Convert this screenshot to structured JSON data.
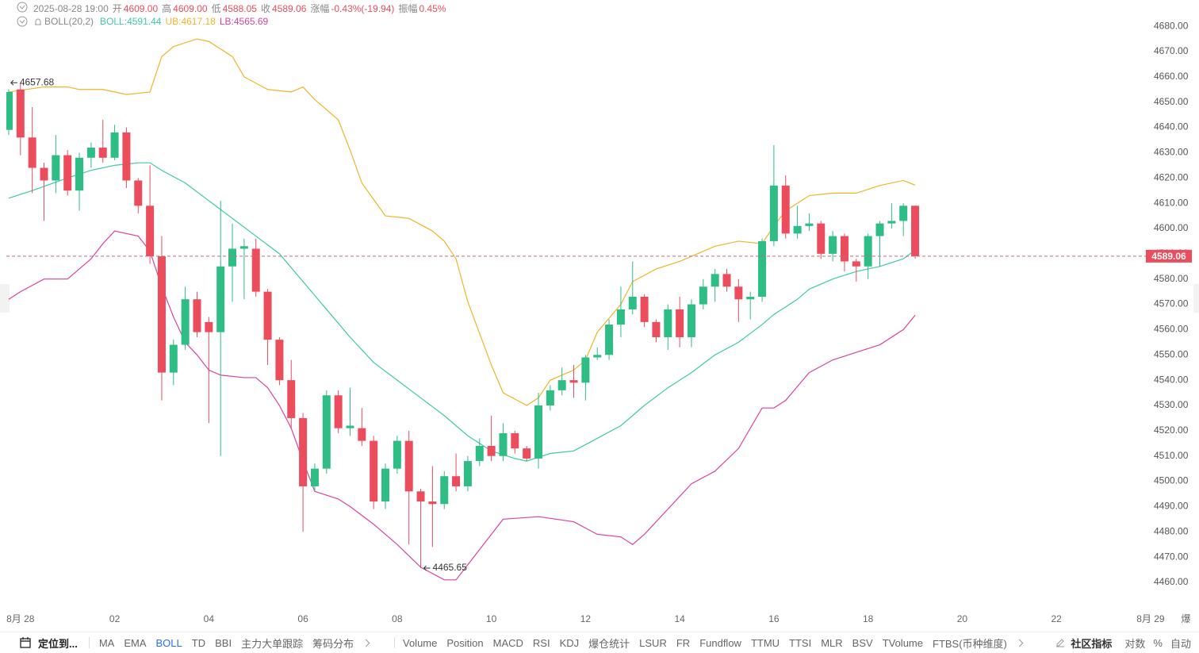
{
  "header": {
    "datetime": "2025-08-28 19:00",
    "fields": [
      {
        "label": "开",
        "value": "4609.00"
      },
      {
        "label": "高",
        "value": "4609.00"
      },
      {
        "label": "低",
        "value": "4588.05"
      },
      {
        "label": "收",
        "value": "4589.06"
      },
      {
        "label": "涨幅",
        "value": "-0.43%(-19.94)"
      },
      {
        "label": "振幅",
        "value": "0.45%"
      }
    ]
  },
  "legend": {
    "title": "BOLL(20,2)",
    "items": [
      "BOLL:4591.44",
      "UB:4617.18",
      "LB:4565.69"
    ]
  },
  "chart_data": {
    "type": "candlestick",
    "up_color": "#2ebd85",
    "down_color": "#eb4d5c",
    "x": [
      -0.25,
      0,
      0.25,
      0.5,
      0.75,
      1,
      1.25,
      1.5,
      1.75,
      2,
      2.25,
      2.5,
      2.75,
      3,
      3.25,
      3.5,
      3.75,
      4,
      4.25,
      4.5,
      4.75,
      5,
      5.25,
      5.5,
      5.75,
      6,
      6.25,
      6.5,
      6.75,
      7,
      7.25,
      7.5,
      7.75,
      8,
      8.25,
      8.5,
      8.75,
      9,
      9.25,
      9.5,
      9.75,
      10,
      10.25,
      10.5,
      10.75,
      11,
      11.25,
      11.5,
      11.75,
      12,
      12.25,
      12.5,
      12.75,
      13,
      13.25,
      13.5,
      13.75,
      14,
      14.25,
      14.5,
      14.75,
      15,
      15.25,
      15.5,
      15.75,
      16,
      16.25,
      16.5,
      16.75,
      17,
      17.25,
      17.5,
      17.75,
      18,
      18.25,
      18.5,
      18.75,
      19
    ],
    "open": [
      4639,
      4655,
      4636,
      4624,
      4619,
      4629,
      4615,
      4628,
      4632,
      4628,
      4638,
      4619,
      4609,
      4589,
      4543,
      4554,
      4572,
      4563,
      4559,
      4585,
      4592,
      4592,
      4575,
      4556,
      4540,
      4525,
      4498,
      4505,
      4534,
      4521,
      4521,
      4516,
      4492,
      4505,
      4516,
      4496,
      4492,
      4491,
      4502,
      4498,
      4508,
      4514,
      4510,
      4519,
      4513,
      4509,
      4530,
      4536,
      4540,
      4539,
      4549,
      4550,
      4562,
      4568,
      4573,
      4563,
      4557,
      4568,
      4557,
      4570,
      4577,
      4582,
      4577,
      4572,
      4573,
      4595,
      4617,
      4598,
      4601,
      4602,
      4590,
      4597,
      4587,
      4585,
      4597,
      4602,
      4603,
      4609
    ],
    "high": [
      4655,
      4657.68,
      4648,
      4626,
      4637,
      4631,
      4630,
      4634,
      4643,
      4641,
      4640,
      4620,
      4625,
      4597,
      4556,
      4577,
      4575,
      4565,
      4611,
      4602,
      4596,
      4596,
      4576,
      4557,
      4548,
      4527,
      4507,
      4536,
      4536,
      4537,
      4529,
      4518,
      4507,
      4518,
      4520,
      4497,
      4506,
      4504,
      4511,
      4510,
      4517,
      4526,
      4523,
      4520,
      4514,
      4535,
      4538,
      4545,
      4546,
      4550,
      4553,
      4564,
      4577,
      4587,
      4574,
      4564,
      4570,
      4573,
      4572,
      4580,
      4584,
      4584,
      4580,
      4575,
      4596,
      4633,
      4621,
      4609,
      4606,
      4603,
      4599,
      4598,
      4588,
      4598,
      4603,
      4610,
      4610,
      4609
    ],
    "low": [
      4637,
      4629,
      4614,
      4603,
      4614,
      4613,
      4607,
      4624,
      4626,
      4627,
      4616,
      4606,
      4586,
      4532,
      4538,
      4552,
      4557,
      4523,
      4510,
      4571,
      4572,
      4573,
      4546,
      4538,
      4521,
      4480,
      4496,
      4503,
      4519,
      4518,
      4514,
      4489,
      4489,
      4503,
      4475,
      4465.65,
      4474,
      4489,
      4496,
      4496,
      4506,
      4508,
      4508,
      4511,
      4508,
      4505,
      4528,
      4534,
      4533,
      4532,
      4548,
      4548,
      4557,
      4566,
      4561,
      4555,
      4552,
      4553,
      4553,
      4568,
      4571,
      4575,
      4563,
      4564,
      4571,
      4593,
      4596,
      4596,
      4599,
      4588,
      4587,
      4583,
      4579,
      4580,
      4585,
      4600,
      4597,
      4588.05
    ],
    "close": [
      4654,
      4636,
      4624,
      4619,
      4629,
      4615,
      4628,
      4632,
      4628,
      4638,
      4619,
      4609,
      4589,
      4543,
      4554,
      4572,
      4559,
      4559,
      4585,
      4592,
      4593,
      4575,
      4556,
      4540,
      4525,
      4498,
      4505,
      4534,
      4521,
      4522,
      4516,
      4492,
      4505,
      4516,
      4496,
      4492,
      4491,
      4502,
      4498,
      4508,
      4514,
      4510,
      4519,
      4513,
      4509,
      4530,
      4536,
      4540,
      4539,
      4549,
      4550,
      4562,
      4568,
      4573,
      4563,
      4557,
      4568,
      4557,
      4570,
      4577,
      4582,
      4577,
      4572,
      4573,
      4595,
      4617,
      4598,
      4601,
      4602,
      4590,
      4597,
      4587,
      4585,
      4597,
      4602,
      4603,
      4609,
      4589.06
    ],
    "overlays": [
      {
        "color": "#3ec9a6",
        "x": [
          -0.25,
          0.25,
          1,
          1.5,
          2,
          2.5,
          2.75,
          3,
          3.5,
          4,
          4.5,
          5,
          5.5,
          6,
          6.5,
          7,
          7.5,
          8,
          8.5,
          9,
          9.5,
          10,
          10.5,
          10.75,
          11.25,
          11.75,
          12.25,
          12.75,
          13.25,
          13.75,
          14.25,
          14.75,
          15.25,
          15.75,
          16,
          16.5,
          16.75,
          17.25,
          17.75,
          18.25,
          18.75,
          19
        ],
        "values": [
          4612,
          4615,
          4620,
          4623,
          4625,
          4626,
          4626,
          4623,
          4618,
          4611,
          4604,
          4597,
          4590,
          4579,
          4568,
          4557,
          4547,
          4540,
          4533,
          4526,
          4518,
          4512,
          4509,
          4508,
          4511,
          4512,
          4517,
          4522,
          4530,
          4537,
          4543,
          4550,
          4555,
          4562,
          4566,
          4572,
          4576,
          4580,
          4583,
          4585,
          4588,
          4591.44
        ]
      },
      {
        "color": "#f0b429",
        "x": [
          -0.25,
          0.5,
          1,
          1.25,
          1.75,
          2.25,
          2.75,
          3,
          3.25,
          3.75,
          4,
          4.5,
          4.75,
          5.25,
          5.75,
          6,
          6.25,
          6.75,
          7,
          7.25,
          7.75,
          8.25,
          8.75,
          9,
          9.25,
          9.5,
          10,
          10.25,
          10.75,
          11,
          11.25,
          11.75,
          12,
          12.25,
          12.75,
          13,
          13.5,
          14,
          14.25,
          14.75,
          15.25,
          15.75,
          16,
          16.25,
          16.75,
          17.25,
          17.75,
          18.25,
          18.75,
          19
        ],
        "values": [
          4654,
          4656,
          4656,
          4655,
          4655,
          4653,
          4654,
          4668,
          4672,
          4675,
          4674,
          4668,
          4660,
          4655,
          4654,
          4656,
          4651,
          4643,
          4631,
          4618,
          4605,
          4604,
          4599,
          4595,
          4588,
          4571,
          4546,
          4535,
          4530,
          4533,
          4540,
          4544,
          4548,
          4559,
          4570,
          4579,
          4584,
          4587,
          4589,
          4593,
          4595,
          4594,
          4601,
          4607,
          4613,
          4614,
          4614,
          4617,
          4619,
          4617.18
        ]
      },
      {
        "color": "#d9449c",
        "x": [
          -0.25,
          0,
          0.5,
          1,
          1.5,
          1.75,
          2,
          2.5,
          2.75,
          3,
          3.25,
          3.5,
          3.75,
          4,
          4.25,
          4.75,
          5,
          5.25,
          5.5,
          5.75,
          6,
          6.25,
          6.75,
          7,
          7.5,
          8,
          8.5,
          9,
          9.25,
          9.5,
          10,
          10.25,
          11,
          11.75,
          12.25,
          12.75,
          13,
          13.25,
          13.75,
          14.25,
          14.75,
          15.25,
          15.75,
          16,
          16.25,
          16.75,
          17.25,
          17.75,
          18.25,
          18.75,
          19
        ],
        "values": [
          4572,
          4575,
          4580,
          4580,
          4588,
          4594,
          4599,
          4597,
          4591,
          4577,
          4565,
          4555,
          4550,
          4544,
          4542,
          4541,
          4541,
          4537,
          4530,
          4521,
          4508,
          4496,
          4493,
          4490,
          4483,
          4475,
          4466,
          4461,
          4461,
          4467,
          4479,
          4485,
          4486,
          4484,
          4479,
          4478,
          4475,
          4479,
          4489,
          4499,
          4504,
          4513,
          4529,
          4529,
          4532,
          4543,
          4548,
          4551,
          4554,
          4560,
          4565.69
        ]
      }
    ],
    "xlim": [
      -0.3,
      23.9
    ],
    "xticks": [
      {
        "value": 0,
        "label": "8月 28"
      },
      {
        "value": 2,
        "label": "02"
      },
      {
        "value": 4,
        "label": "04"
      },
      {
        "value": 6,
        "label": "06"
      },
      {
        "value": 8,
        "label": "08"
      },
      {
        "value": 10,
        "label": "10"
      },
      {
        "value": 12,
        "label": "12"
      },
      {
        "value": 14,
        "label": "14"
      },
      {
        "value": 16,
        "label": "16"
      },
      {
        "value": 18,
        "label": "18"
      },
      {
        "value": 20,
        "label": "20"
      },
      {
        "value": 22,
        "label": "22"
      },
      {
        "value": 24,
        "label": "8月 29"
      },
      {
        "value": 24.75,
        "label": "爆"
      }
    ],
    "ylim": [
      4448.7,
      4690.4
    ],
    "yticks": [
      {
        "value": 4460,
        "label": "4460.00"
      },
      {
        "value": 4470,
        "label": "4470.00"
      },
      {
        "value": 4480,
        "label": "4480.00"
      },
      {
        "value": 4490,
        "label": "4490.00"
      },
      {
        "value": 4500,
        "label": "4500.00"
      },
      {
        "value": 4510,
        "label": "4510.00"
      },
      {
        "value": 4520,
        "label": "4520.00"
      },
      {
        "value": 4530,
        "label": "4530.00"
      },
      {
        "value": 4540,
        "label": "4540.00"
      },
      {
        "value": 4550,
        "label": "4550.00"
      },
      {
        "value": 4560,
        "label": "4560.00"
      },
      {
        "value": 4570,
        "label": "4570.00"
      },
      {
        "value": 4580,
        "label": "4580.00"
      },
      {
        "value": 4590,
        "label": "4590.00"
      },
      {
        "value": 4600,
        "label": "4600.00"
      },
      {
        "value": 4610,
        "label": "4610.00"
      },
      {
        "value": 4620,
        "label": "4620.00"
      },
      {
        "value": 4630,
        "label": "4630.00"
      },
      {
        "value": 4640,
        "label": "4640.00"
      },
      {
        "value": 4650,
        "label": "4650.00"
      },
      {
        "value": 4660,
        "label": "4660.00"
      },
      {
        "value": 4670,
        "label": "4670.00"
      },
      {
        "value": 4680,
        "label": "4680.00"
      }
    ],
    "last_price": 4589.06,
    "annotations": [
      {
        "x": 0,
        "y": 4657.68
      },
      {
        "x": 8.5,
        "y": 4465.65
      }
    ]
  },
  "toolbar": {
    "locate": "定位到...",
    "main": [
      "MA",
      "EMA",
      "BOLL",
      "TD",
      "BBI",
      "主力大单跟踪",
      "筹码分布"
    ],
    "active_main_index": 2,
    "sub": [
      "Volume",
      "Position",
      "MACD",
      "RSI",
      "KDJ",
      "爆仓统计",
      "LSUR",
      "FR",
      "Fundflow",
      "TTMU",
      "TTSI",
      "MLR",
      "BSV",
      "TVolume",
      "FTBS(币种维度)"
    ],
    "right": [
      "社区指标",
      "对数",
      "%",
      "自动"
    ]
  }
}
